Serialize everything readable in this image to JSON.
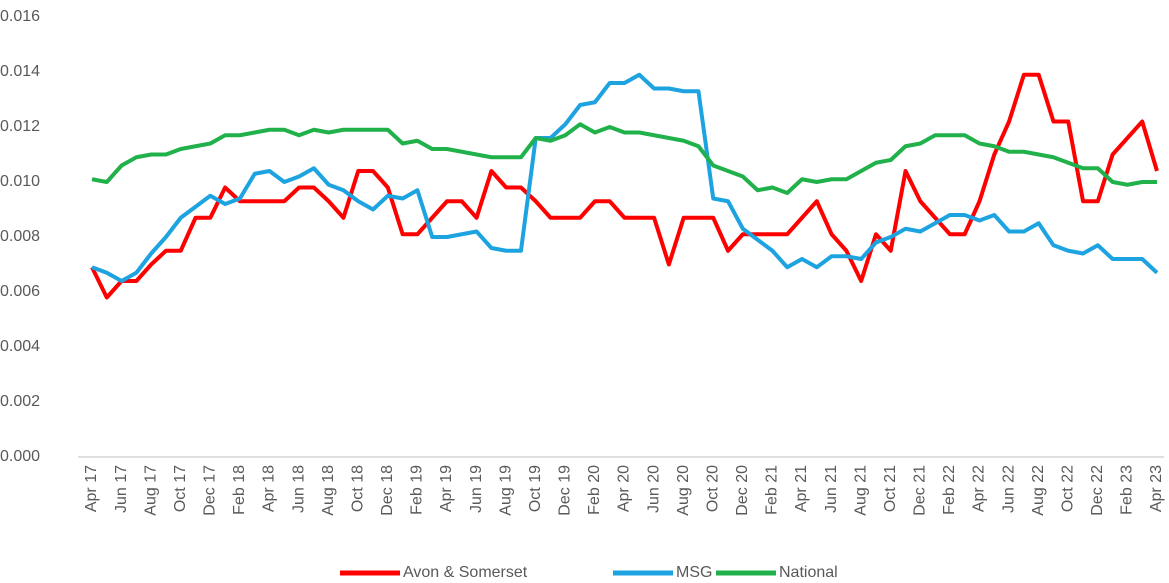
{
  "chart_data": {
    "type": "line",
    "categories": [
      "Apr 17",
      null,
      "Jun 17",
      null,
      "Aug 17",
      null,
      "Oct 17",
      null,
      "Dec 17",
      null,
      "Feb 18",
      null,
      "Apr 18",
      null,
      "Jun 18",
      null,
      "Aug 18",
      null,
      "Oct 18",
      null,
      "Dec 18",
      null,
      "Feb 19",
      null,
      "Apr 19",
      null,
      "Jun 19",
      null,
      "Aug 19",
      null,
      "Oct 19",
      null,
      "Dec 19",
      null,
      "Feb 20",
      null,
      "Apr 20",
      null,
      "Jun 20",
      null,
      "Aug 20",
      null,
      "Oct 20",
      null,
      "Dec 20",
      null,
      "Feb 21",
      null,
      "Apr 21",
      null,
      "Jun 21",
      null,
      "Aug 21",
      null,
      "Oct 21",
      null,
      "Dec 21",
      null,
      "Feb 22",
      null,
      "Apr 22",
      null,
      "Jun 22",
      null,
      "Aug 22",
      null,
      "Oct 22",
      null,
      "Dec 22",
      null,
      "Feb 23",
      null,
      "Apr 23"
    ],
    "series": [
      {
        "name": "Avon & Somerset",
        "color": "#ff0000",
        "values": [
          0.0069,
          0.0058,
          0.0064,
          0.0064,
          0.007,
          0.0075,
          0.0075,
          0.0087,
          0.0087,
          0.0098,
          0.0093,
          0.0093,
          0.0093,
          0.0093,
          0.0098,
          0.0098,
          0.0093,
          0.0087,
          0.0104,
          0.0104,
          0.0098,
          0.0081,
          0.0081,
          0.0087,
          0.0093,
          0.0093,
          0.0087,
          0.0104,
          0.0098,
          0.0098,
          0.0093,
          0.0087,
          0.0087,
          0.0087,
          0.0093,
          0.0093,
          0.0087,
          0.0087,
          0.0087,
          0.007,
          0.0087,
          0.0087,
          0.0087,
          0.0075,
          0.0081,
          0.0081,
          0.0081,
          0.0081,
          0.0087,
          0.0093,
          0.0081,
          0.0075,
          0.0064,
          0.0081,
          0.0075,
          0.0104,
          0.0093,
          0.0087,
          0.0081,
          0.0081,
          0.0093,
          0.011,
          0.0122,
          0.0139,
          0.0139,
          0.0122,
          0.0122,
          0.0093,
          0.0093,
          0.011,
          0.0116,
          0.0122,
          0.0104
        ]
      },
      {
        "name": "MSG",
        "color": "#1ca3e0",
        "values": [
          0.0069,
          0.0067,
          0.0064,
          0.0067,
          0.0074,
          0.008,
          0.0087,
          0.0091,
          0.0095,
          0.0092,
          0.0094,
          0.0103,
          0.0104,
          0.01,
          0.0102,
          0.0105,
          0.0099,
          0.0097,
          0.0093,
          0.009,
          0.0095,
          0.0094,
          0.0097,
          0.008,
          0.008,
          0.0081,
          0.0082,
          0.0076,
          0.0075,
          0.0075,
          0.0116,
          0.0116,
          0.0121,
          0.0128,
          0.0129,
          0.0136,
          0.0136,
          0.0139,
          0.0134,
          0.0134,
          0.0133,
          0.0133,
          0.0094,
          0.0093,
          0.0083,
          0.0079,
          0.0075,
          0.0069,
          0.0072,
          0.0069,
          0.0073,
          0.0073,
          0.0072,
          0.0078,
          0.008,
          0.0083,
          0.0082,
          0.0085,
          0.0088,
          0.0088,
          0.0086,
          0.0088,
          0.0082,
          0.0082,
          0.0085,
          0.0077,
          0.0075,
          0.0074,
          0.0077,
          0.0072,
          0.0072,
          0.0072,
          0.0067
        ]
      },
      {
        "name": "National",
        "color": "#21b14b",
        "values": [
          0.0101,
          0.01,
          0.0106,
          0.0109,
          0.011,
          0.011,
          0.0112,
          0.0113,
          0.0114,
          0.0117,
          0.0117,
          0.0118,
          0.0119,
          0.0119,
          0.0117,
          0.0119,
          0.0118,
          0.0119,
          0.0119,
          0.0119,
          0.0119,
          0.0114,
          0.0115,
          0.0112,
          0.0112,
          0.0111,
          0.011,
          0.0109,
          0.0109,
          0.0109,
          0.0116,
          0.0115,
          0.0117,
          0.0121,
          0.0118,
          0.012,
          0.0118,
          0.0118,
          0.0117,
          0.0116,
          0.0115,
          0.0113,
          0.0106,
          0.0104,
          0.0102,
          0.0097,
          0.0098,
          0.0096,
          0.0101,
          0.01,
          0.0101,
          0.0101,
          0.0104,
          0.0107,
          0.0108,
          0.0113,
          0.0114,
          0.0117,
          0.0117,
          0.0117,
          0.0114,
          0.0113,
          0.0111,
          0.0111,
          0.011,
          0.0109,
          0.0107,
          0.0105,
          0.0105,
          0.01,
          0.0099,
          0.01,
          0.01
        ]
      }
    ],
    "ylim": [
      0,
      0.016
    ],
    "yticks": [
      {
        "value": 0,
        "label": "0.000"
      },
      {
        "value": 0.002,
        "label": "0.002"
      },
      {
        "value": 0.004,
        "label": "0.004"
      },
      {
        "value": 0.006,
        "label": "0.006"
      },
      {
        "value": 0.008,
        "label": "0.008"
      },
      {
        "value": 0.01,
        "label": "0.010"
      },
      {
        "value": 0.012,
        "label": "0.012"
      },
      {
        "value": 0.014,
        "label": "0.014"
      },
      {
        "value": 0.016,
        "label": "0.016"
      }
    ],
    "grid": false,
    "legend": "bottom"
  }
}
